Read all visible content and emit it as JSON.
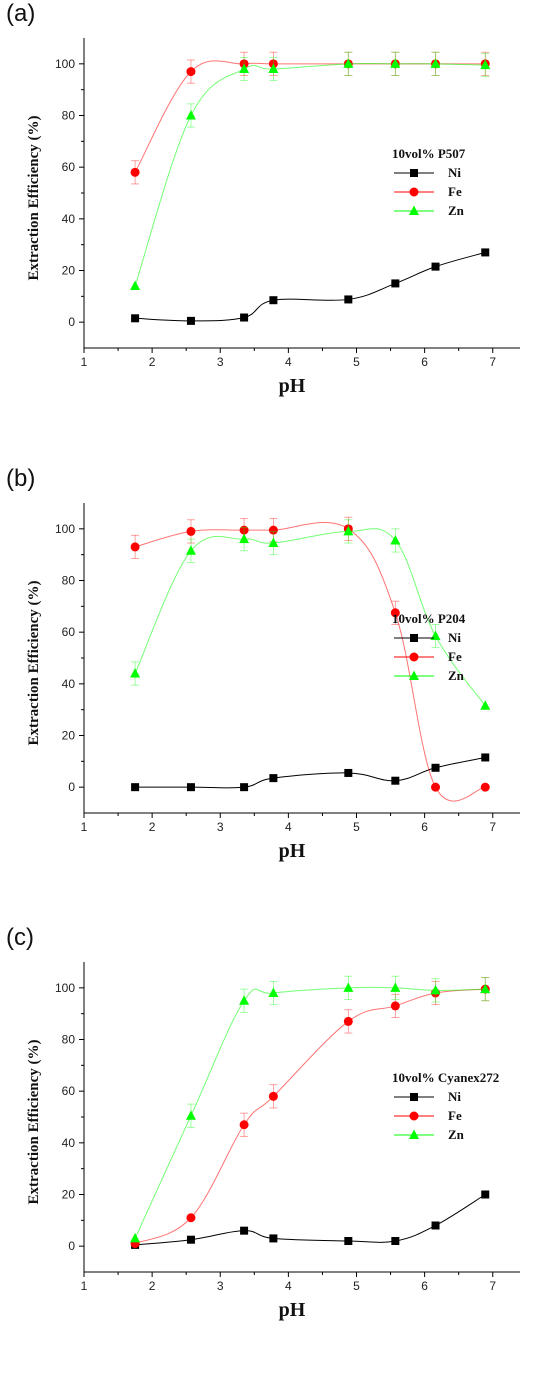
{
  "chart_data": [
    {
      "type": "line",
      "panel_label": "(a)",
      "legend_title": "10vol% P507",
      "xlabel": "pH",
      "ylabel": "Extraction Efficiency (%)",
      "xlim": [
        1,
        7.4
      ],
      "ylim": [
        -10,
        110
      ],
      "xticks": [
        1,
        2,
        3,
        4,
        5,
        6,
        7
      ],
      "yticks": [
        0,
        20,
        40,
        60,
        80,
        100
      ],
      "legend_position": "right",
      "x": [
        1.75,
        2.57,
        3.35,
        3.78,
        4.88,
        5.57,
        6.16,
        6.89
      ],
      "series": [
        {
          "name": "Ni",
          "color": "#000000",
          "marker": "square",
          "values": [
            1.5,
            0.5,
            1.8,
            8.5,
            8.8,
            15,
            21.5,
            27
          ]
        },
        {
          "name": "Fe",
          "color": "#ff0000",
          "marker": "circle",
          "values": [
            58,
            97,
            100,
            100,
            100,
            100,
            100,
            100
          ]
        },
        {
          "name": "Zn",
          "color": "#00ff00",
          "marker": "triangle",
          "values": [
            14,
            80,
            98,
            98,
            100,
            100,
            100,
            99.5
          ]
        }
      ]
    },
    {
      "type": "line",
      "panel_label": "(b)",
      "legend_title": "10vol% P204",
      "xlabel": "pH",
      "ylabel": "Extraction Efficiency (%)",
      "xlim": [
        1,
        7.4
      ],
      "ylim": [
        -10,
        110
      ],
      "xticks": [
        1,
        2,
        3,
        4,
        5,
        6,
        7
      ],
      "yticks": [
        0,
        20,
        40,
        60,
        80,
        100
      ],
      "legend_position": "right",
      "x": [
        1.75,
        2.57,
        3.35,
        3.78,
        4.88,
        5.57,
        6.16,
        6.89
      ],
      "series": [
        {
          "name": "Ni",
          "color": "#000000",
          "marker": "square",
          "values": [
            0,
            0,
            0,
            3.5,
            5.5,
            2.5,
            7.5,
            11.5
          ]
        },
        {
          "name": "Fe",
          "color": "#ff0000",
          "marker": "circle",
          "values": [
            93,
            99,
            99.5,
            99.5,
            100,
            67.5,
            0,
            0
          ]
        },
        {
          "name": "Zn",
          "color": "#00ff00",
          "marker": "triangle",
          "values": [
            44,
            91.5,
            96,
            94.5,
            99,
            95.5,
            58.5,
            31.5
          ]
        }
      ]
    },
    {
      "type": "line",
      "panel_label": "(c)",
      "legend_title": "10vol% Cyanex272",
      "xlabel": "pH",
      "ylabel": "Extraction Efficiency (%)",
      "xlim": [
        1,
        7.4
      ],
      "ylim": [
        -10,
        110
      ],
      "xticks": [
        1,
        2,
        3,
        4,
        5,
        6,
        7
      ],
      "yticks": [
        0,
        20,
        40,
        60,
        80,
        100
      ],
      "legend_position": "right",
      "x": [
        1.75,
        2.57,
        3.35,
        3.78,
        4.88,
        5.57,
        6.16,
        6.89
      ],
      "series": [
        {
          "name": "Ni",
          "color": "#000000",
          "marker": "square",
          "values": [
            0.5,
            2.5,
            6,
            3,
            2,
            2,
            8,
            20
          ]
        },
        {
          "name": "Fe",
          "color": "#ff0000",
          "marker": "circle",
          "values": [
            1,
            11,
            47,
            58,
            87,
            93,
            98,
            99.5
          ]
        },
        {
          "name": "Zn",
          "color": "#00ff00",
          "marker": "triangle",
          "values": [
            3,
            50.5,
            95,
            98,
            100,
            100,
            99,
            99.5
          ]
        }
      ]
    }
  ]
}
